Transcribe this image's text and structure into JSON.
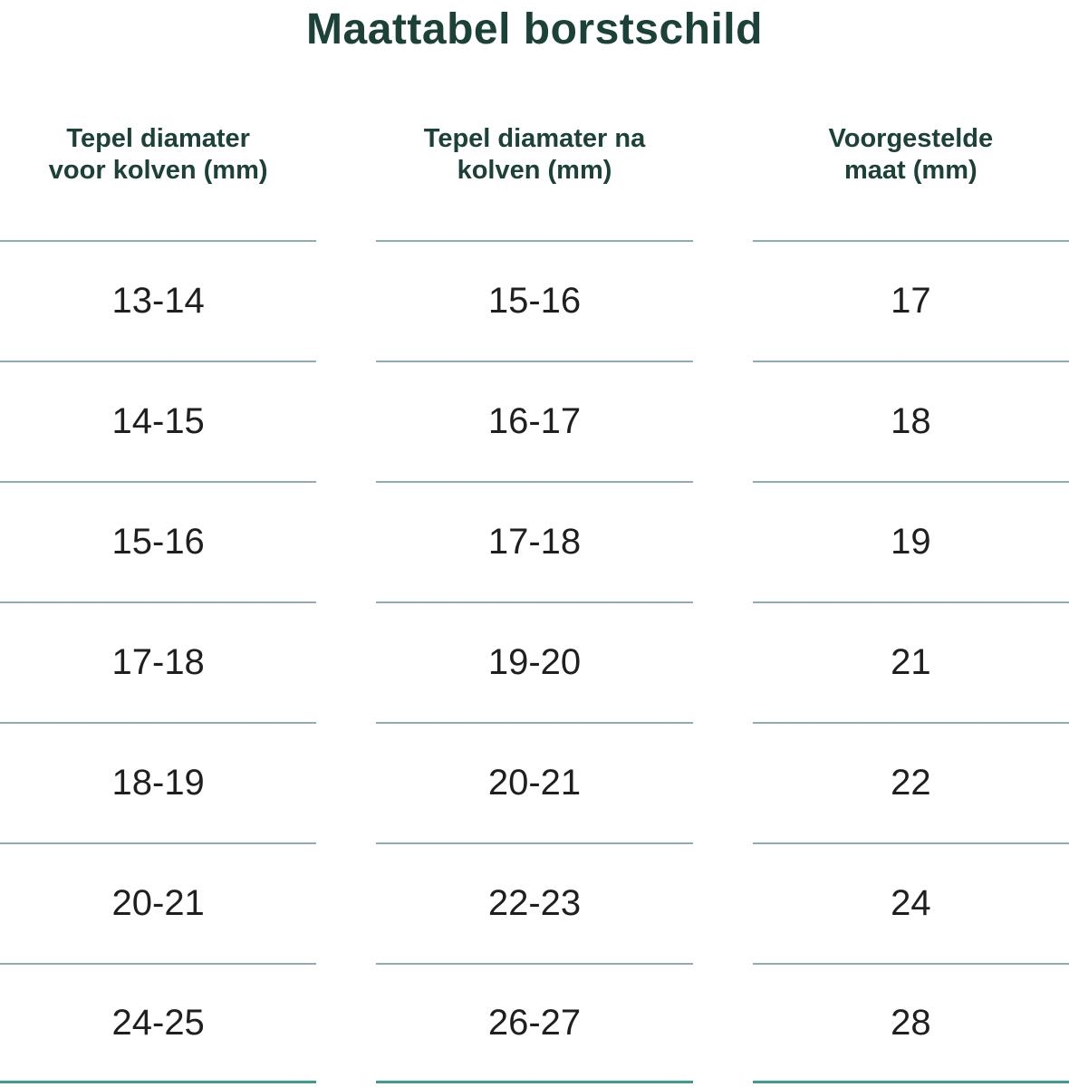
{
  "title": "Maattabel borstschild",
  "table": {
    "columns": [
      {
        "line1": "Tepel diamater",
        "line2": "voor kolven (mm)"
      },
      {
        "line1": "Tepel diamater na",
        "line2": "kolven (mm)"
      },
      {
        "line1": "Voorgestelde",
        "line2": "maat (mm)"
      }
    ],
    "rows": [
      [
        "13-14",
        "15-16",
        "17"
      ],
      [
        "14-15",
        "16-17",
        "18"
      ],
      [
        "15-16",
        "17-18",
        "19"
      ],
      [
        "17-18",
        "19-20",
        "21"
      ],
      [
        "18-19",
        "20-21",
        "22"
      ],
      [
        "20-21",
        "22-23",
        "24"
      ],
      [
        "24-25",
        "26-27",
        "28"
      ]
    ]
  },
  "colors": {
    "heading": "#1c4138",
    "cell_text": "#1f1f1f",
    "row_separator": "#8fadae",
    "bottom_rule": "#3d9e8e",
    "background": "#ffffff"
  },
  "chart_data": {
    "type": "table",
    "title": "Maattabel borstschild",
    "columns": [
      "Tepel diamater voor kolven (mm)",
      "Tepel diamater na kolven (mm)",
      "Voorgestelde maat (mm)"
    ],
    "rows": [
      [
        "13-14",
        "15-16",
        "17"
      ],
      [
        "14-15",
        "16-17",
        "18"
      ],
      [
        "15-16",
        "17-18",
        "19"
      ],
      [
        "17-18",
        "19-20",
        "21"
      ],
      [
        "18-19",
        "20-21",
        "22"
      ],
      [
        "20-21",
        "22-23",
        "24"
      ],
      [
        "24-25",
        "26-27",
        "28"
      ]
    ],
    "legend_position": "none",
    "grid": "horizontal-separators-only"
  }
}
